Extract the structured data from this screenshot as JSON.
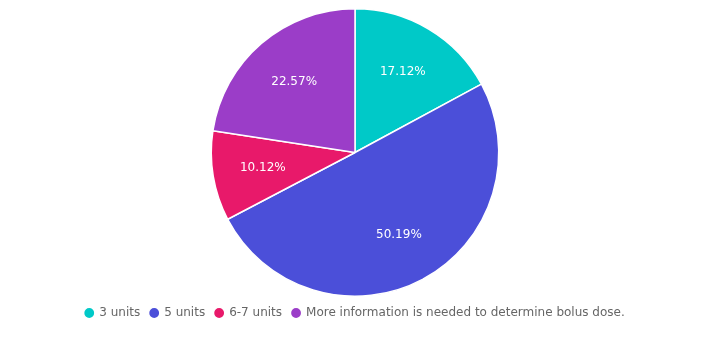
{
  "chart_data": {
    "type": "pie",
    "categories": [
      "3 units",
      "5 units",
      "6-7 units",
      "More information is needed to determine bolus dose."
    ],
    "values": [
      17.12,
      50.19,
      10.12,
      22.57
    ],
    "value_labels": [
      "17.12%",
      "50.19%",
      "10.12%",
      "22.57%"
    ],
    "colors": [
      "#00C9C8",
      "#4B4FD9",
      "#E8196A",
      "#9B3DC8"
    ],
    "data_labels": true,
    "legend": "bottom"
  }
}
